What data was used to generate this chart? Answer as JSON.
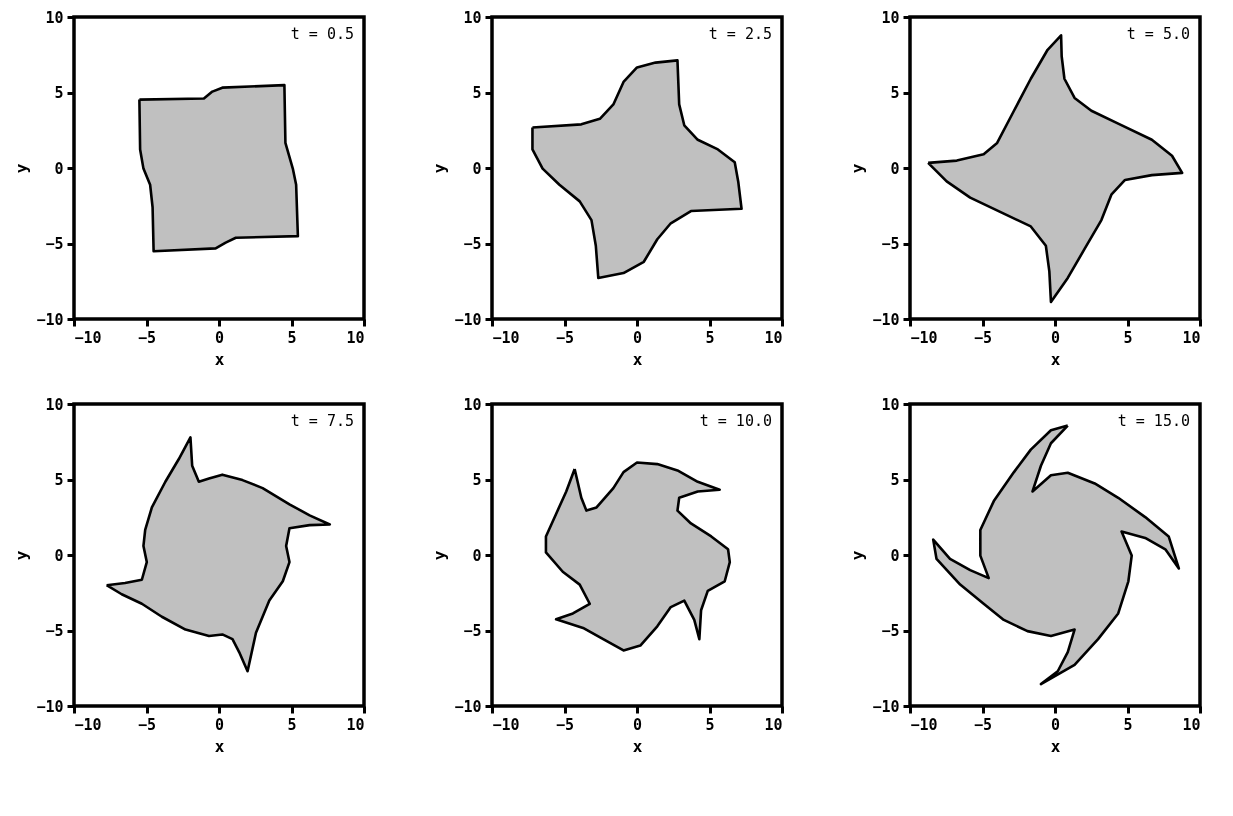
{
  "chart_data": [
    {
      "type": "line",
      "xlabel": "x",
      "ylabel": "y",
      "annotations": [
        "t = 0.5"
      ],
      "xlim": [
        -10,
        10
      ],
      "ylim": [
        -10,
        10
      ],
      "xticks": [
        -10,
        -5,
        0,
        5,
        10
      ],
      "yticks": [
        -10,
        -5,
        0,
        5,
        10
      ],
      "grid": false,
      "series": [
        {
          "type": "area",
          "color": "#c0c0c0",
          "x": [
            -5.49,
            -1.04,
            -0.46,
            0.23,
            4.51,
            4.58,
            5.09,
            5.32,
            5.44,
            1.16,
            0.46,
            -0.23,
            -4.51,
            -4.58,
            -4.75,
            -5.21,
            -5.44,
            -5.49
          ],
          "values": [
            4.53,
            4.6,
            5.06,
            5.32,
            5.49,
            1.66,
            -0.04,
            -1.11,
            -4.51,
            -4.62,
            -4.94,
            -5.32,
            -5.51,
            -2.6,
            -1.11,
            -0.04,
            1.23,
            4.53
          ]
        }
      ]
    },
    {
      "type": "line",
      "xlabel": "x",
      "ylabel": "y",
      "annotations": [
        "t = 2.5"
      ],
      "xlim": [
        -10,
        10
      ],
      "ylim": [
        -10,
        10
      ],
      "xticks": [
        -10,
        -5,
        0,
        5,
        10
      ],
      "yticks": [
        -10,
        -5,
        0,
        5,
        10
      ],
      "grid": false,
      "series": [
        {
          "type": "area",
          "color": "#c0c0c0",
          "x": [
            -7.21,
            -3.84,
            -2.56,
            -1.63,
            -0.93,
            0,
            1.28,
            2.79,
            2.91,
            3.26,
            4.19,
            5.58,
            6.74,
            6.98,
            7.21,
            3.72,
            2.33,
            1.4,
            0.47,
            -0.93,
            -2.67,
            -2.84,
            -3.14,
            -3.95,
            -5.35,
            -6.51,
            -7.21,
            -7.21
          ],
          "values": [
            2.68,
            2.89,
            3.26,
            4.21,
            5.7,
            6.66,
            6.98,
            7.13,
            4.21,
            2.83,
            1.87,
            1.23,
            0.38,
            -0.89,
            -2.7,
            -2.85,
            -3.66,
            -4.72,
            -6.21,
            -6.96,
            -7.28,
            -5.15,
            -3.45,
            -2.21,
            -1.11,
            -0.04,
            1.23,
            2.68
          ]
        }
      ]
    },
    {
      "type": "line",
      "xlabel": "x",
      "ylabel": "y",
      "annotations": [
        "t = 5.0"
      ],
      "xlim": [
        -10,
        10
      ],
      "ylim": [
        -10,
        10
      ],
      "xticks": [
        -10,
        -5,
        0,
        5,
        10
      ],
      "yticks": [
        -10,
        -5,
        0,
        5,
        10
      ],
      "grid": false,
      "series": [
        {
          "type": "area",
          "color": "#c0c0c0",
          "x": [
            -8.75,
            -6.77,
            -4.92,
            -3.99,
            -2.83,
            -1.67,
            -0.51,
            0.42,
            0.46,
            0.65,
            1.35,
            2.51,
            4.36,
            6.68,
            8.07,
            8.77,
            6.68,
            4.83,
            3.9,
            3.2,
            2.04,
            0.88,
            -0.28,
            -0.39,
            -0.63,
            -1.67,
            -3.53,
            -5.85,
            -7.47,
            -8.75
          ],
          "values": [
            0.34,
            0.49,
            0.91,
            1.66,
            3.79,
            5.91,
            7.83,
            8.79,
            7.4,
            5.91,
            4.64,
            3.79,
            2.94,
            1.87,
            0.81,
            -0.32,
            -0.47,
            -0.79,
            -1.74,
            -3.45,
            -5.36,
            -7.28,
            -8.87,
            -6.85,
            -5.15,
            -3.87,
            -3.02,
            -1.96,
            -0.89,
            0.34
          ]
        }
      ]
    },
    {
      "type": "line",
      "xlabel": "x",
      "ylabel": "y",
      "annotations": [
        "t = 7.5"
      ],
      "xlim": [
        -10,
        10
      ],
      "ylim": [
        -10,
        10
      ],
      "xticks": [
        -10,
        -5,
        0,
        5,
        10
      ],
      "yticks": [
        -10,
        -5,
        0,
        5,
        10
      ],
      "grid": false,
      "series": [
        {
          "type": "area",
          "color": "#c0c0c0",
          "x": [
            -7.75,
            -6.48,
            -5.32,
            -4.98,
            -5.21,
            -5.09,
            -4.63,
            -3.7,
            -2.78,
            -1.97,
            -1.85,
            -1.39,
            -0.69,
            0.23,
            1.62,
            3.01,
            4.86,
            6.25,
            7.64,
            6.25,
            4.86,
            4.63,
            4.86,
            4.4,
            3.47,
            2.55,
            1.97,
            1.39,
            0.93,
            0.23,
            -0.69,
            -2.31,
            -3.94,
            -5.32,
            -6.71,
            -7.75
          ],
          "values": [
            -2.0,
            -1.85,
            -1.64,
            -0.47,
            0.6,
            1.66,
            3.15,
            4.85,
            6.34,
            7.79,
            5.91,
            4.85,
            5.06,
            5.32,
            4.96,
            4.43,
            3.36,
            2.62,
            2.02,
            1.98,
            1.77,
            0.6,
            -0.47,
            -1.74,
            -3.02,
            -5.15,
            -7.7,
            -6.43,
            -5.57,
            -5.26,
            -5.36,
            -4.94,
            -4.09,
            -3.23,
            -2.6,
            -2.0
          ]
        }
      ]
    },
    {
      "type": "line",
      "xlabel": "x",
      "ylabel": "y",
      "annotations": [
        "t = 10.0"
      ],
      "xlim": [
        -10,
        10
      ],
      "ylim": [
        -10,
        10
      ],
      "xticks": [
        -10,
        -5,
        0,
        5,
        10
      ],
      "yticks": [
        -10,
        -5,
        0,
        5,
        10
      ],
      "grid": false,
      "series": [
        {
          "type": "area",
          "color": "#c0c0c0",
          "x": [
            -4.3,
            -3.84,
            -3.49,
            -2.79,
            -1.63,
            -0.93,
            0,
            1.4,
            2.79,
            4.19,
            5.7,
            4.19,
            2.91,
            2.79,
            3.72,
            5.12,
            6.28,
            6.4,
            6.05,
            4.88,
            4.42,
            4.3,
            3.95,
            3.26,
            2.33,
            1.4,
            0.23,
            -0.93,
            -2.33,
            -3.72,
            -5.58,
            -4.42,
            -3.26,
            -3.95,
            -5.12,
            -6.28,
            -6.28,
            -5.58,
            -4.88,
            -4.3
          ],
          "values": [
            5.7,
            3.79,
            2.94,
            3.15,
            4.43,
            5.49,
            6.13,
            6.02,
            5.6,
            4.85,
            4.32,
            4.21,
            3.79,
            2.94,
            2.09,
            1.23,
            0.38,
            -0.47,
            -1.74,
            -2.38,
            -3.66,
            -5.57,
            -4.3,
            -3.02,
            -3.45,
            -4.72,
            -6.0,
            -6.32,
            -5.57,
            -4.83,
            -4.26,
            -3.87,
            -3.23,
            -1.96,
            -1.11,
            0.17,
            1.23,
            2.72,
            4.21,
            5.7
          ]
        }
      ]
    },
    {
      "type": "line",
      "xlabel": "x",
      "ylabel": "y",
      "annotations": [
        "t = 15.0"
      ],
      "xlim": [
        -10,
        10
      ],
      "ylim": [
        -10,
        10
      ],
      "xticks": [
        -10,
        -5,
        0,
        5,
        10
      ],
      "yticks": [
        -10,
        -5,
        0,
        5,
        10
      ],
      "grid": false,
      "series": [
        {
          "type": "area",
          "color": "#c0c0c0",
          "x": [
            0.88,
            -0.28,
            -0.97,
            -1.55,
            -0.28,
            0.88,
            2.74,
            4.36,
            6.22,
            7.84,
            8.54,
            7.61,
            6.22,
            4.59,
            5.29,
            5.06,
            4.36,
            2.97,
            1.35,
            -0.97,
            0.19,
            0.88,
            1.35,
            -0.28,
            -1.9,
            -3.53,
            -4.92,
            -6.54,
            -8.17,
            -8.4,
            -7.24,
            -5.85,
            -4.57,
            -5.15,
            -5.15,
            -4.22,
            -2.83,
            -1.67,
            -0.28,
            0.88
          ],
          "values": [
            8.57,
            7.4,
            5.91,
            4.21,
            5.28,
            5.45,
            4.74,
            3.79,
            2.51,
            1.23,
            -0.89,
            0.38,
            1.13,
            1.55,
            -0.04,
            -1.74,
            -3.87,
            -5.57,
            -7.28,
            -8.55,
            -7.7,
            -6.43,
            -4.94,
            -5.36,
            -5.04,
            -4.3,
            -3.23,
            -1.96,
            -0.26,
            1.02,
            -0.26,
            -1.0,
            -1.53,
            -0.04,
            1.66,
            3.57,
            5.49,
            6.98,
            8.26,
            8.57
          ]
        }
      ]
    }
  ]
}
